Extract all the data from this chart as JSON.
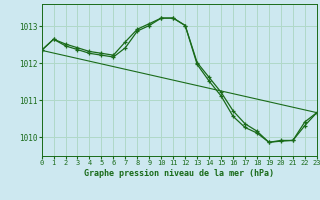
{
  "title": "Graphe pression niveau de la mer (hPa)",
  "background_color": "#cde8f0",
  "plot_bg_color": "#cde8f0",
  "grid_color": "#b0d8c8",
  "line_color": "#1a6b1a",
  "marker_color": "#1a6b1a",
  "xlim": [
    0,
    23
  ],
  "ylim": [
    1009.5,
    1013.6
  ],
  "xticks": [
    0,
    1,
    2,
    3,
    4,
    5,
    6,
    7,
    8,
    9,
    10,
    11,
    12,
    13,
    14,
    15,
    16,
    17,
    18,
    19,
    20,
    21,
    22,
    23
  ],
  "yticks": [
    1010,
    1011,
    1012,
    1013
  ],
  "series1": {
    "x": [
      0,
      1,
      2,
      3,
      4,
      5,
      6,
      7,
      8,
      9,
      10,
      11,
      12,
      13,
      14,
      15,
      16,
      17,
      18,
      19,
      20,
      21,
      22,
      23
    ],
    "y": [
      1012.35,
      1012.65,
      1012.52,
      1012.42,
      1012.32,
      1012.27,
      1012.22,
      1012.58,
      1012.92,
      1013.07,
      1013.22,
      1013.22,
      1013.02,
      1012.02,
      1011.62,
      1011.22,
      1010.72,
      1010.37,
      1010.17,
      1009.87,
      1009.92,
      1009.92,
      1010.42,
      1010.67
    ]
  },
  "series2": {
    "x": [
      0,
      1,
      2,
      3,
      4,
      5,
      6,
      7,
      8,
      9,
      10,
      11,
      12,
      13,
      14,
      15,
      16,
      17,
      18,
      19,
      20,
      21,
      22,
      23
    ],
    "y": [
      1012.35,
      1012.65,
      1012.47,
      1012.37,
      1012.27,
      1012.22,
      1012.17,
      1012.42,
      1012.87,
      1013.02,
      1013.22,
      1013.22,
      1013.02,
      1011.97,
      1011.52,
      1011.12,
      1010.57,
      1010.27,
      1010.12,
      1009.87,
      1009.9,
      1009.92,
      1010.32,
      1010.67
    ]
  },
  "series3_straight": {
    "x": [
      0,
      23
    ],
    "y": [
      1012.35,
      1010.67
    ]
  }
}
